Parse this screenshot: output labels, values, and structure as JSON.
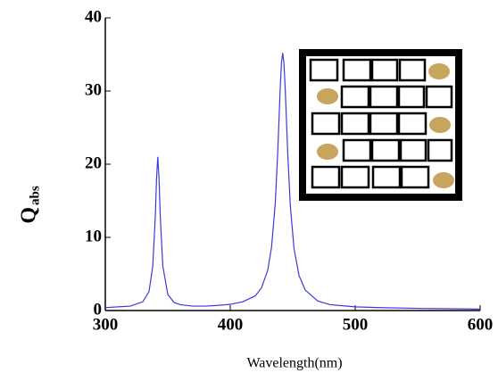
{
  "chart_data": {
    "type": "line",
    "x_label": "Wavelength(nm)",
    "y_label": "Q",
    "y_label_subscript": "abs",
    "x": [
      300,
      310,
      320,
      330,
      335,
      338,
      340,
      341,
      342,
      343,
      344,
      346,
      350,
      355,
      360,
      370,
      380,
      390,
      400,
      410,
      420,
      425,
      430,
      433,
      436,
      438,
      440,
      441,
      442,
      443,
      444,
      446,
      448,
      451,
      455,
      460,
      470,
      480,
      500,
      520,
      550,
      600
    ],
    "values": [
      0.4,
      0.5,
      0.6,
      1.2,
      2.6,
      6.1,
      12.8,
      18,
      21,
      18,
      12.8,
      6.1,
      2.2,
      1.1,
      0.8,
      0.6,
      0.6,
      0.7,
      0.85,
      1.2,
      2.0,
      3.1,
      5.5,
      8.6,
      14.6,
      21.6,
      30.5,
      33.9,
      35.2,
      33.7,
      30.3,
      21.5,
      14.5,
      8.5,
      4.8,
      2.8,
      1.3,
      0.8,
      0.5,
      0.4,
      0.3,
      0.2
    ],
    "color": "#3a3adf",
    "xlim": [
      300,
      600
    ],
    "xticks": [
      300,
      400,
      500,
      600
    ],
    "ylim": [
      0,
      40
    ],
    "yticks": [
      0,
      10,
      20,
      30,
      40
    ]
  }
}
